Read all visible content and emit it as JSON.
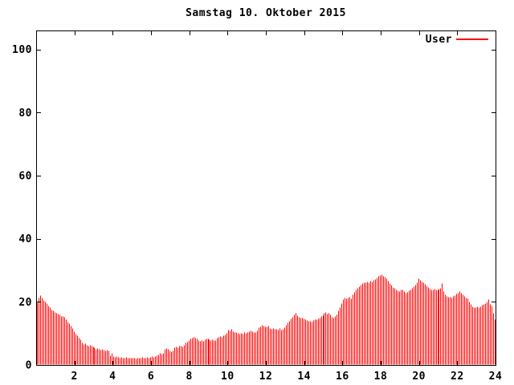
{
  "window": {
    "background": "#ffffff"
  },
  "chart_data": {
    "type": "bar",
    "style": "impulses",
    "title": "Samstag 10. Oktober 2015",
    "legend": {
      "label": "User",
      "position": "top-right-inside"
    },
    "bar_color": "#ff0000",
    "axis_color": "#000000",
    "xlabel": "",
    "ylabel": "",
    "xlim": [
      0,
      24
    ],
    "ylim": [
      0,
      106
    ],
    "x_interval_minutes": 5,
    "x_tick_labels": [
      2,
      4,
      6,
      8,
      10,
      12,
      14,
      16,
      18,
      20,
      22,
      24
    ],
    "y_tick_labels": [
      0,
      20,
      40,
      60,
      80,
      100
    ],
    "grid": false,
    "values": [
      19.8,
      21.3,
      22.0,
      21.4,
      20.7,
      20.2,
      19.5,
      18.9,
      18.3,
      17.6,
      17.2,
      16.8,
      16.6,
      16.2,
      15.9,
      15.6,
      15.4,
      15.3,
      14.6,
      13.8,
      13.1,
      12.4,
      11.6,
      10.7,
      10.0,
      9.3,
      8.7,
      8.1,
      7.2,
      6.6,
      6.8,
      6.4,
      6.2,
      6.3,
      6.0,
      5.8,
      5.5,
      5.2,
      5.3,
      5.0,
      4.9,
      5.1,
      4.8,
      4.7,
      4.9,
      4.6,
      3.0,
      3.9,
      2.8,
      2.6,
      2.7,
      2.5,
      2.4,
      2.6,
      2.3,
      2.4,
      2.5,
      2.3,
      2.2,
      2.4,
      2.2,
      2.3,
      2.1,
      2.2,
      2.4,
      2.3,
      2.5,
      2.3,
      2.4,
      2.6,
      2.4,
      2.5,
      2.7,
      2.6,
      2.8,
      3.0,
      3.4,
      3.7,
      3.6,
      3.9,
      5.0,
      5.3,
      5.2,
      4.6,
      4.3,
      4.5,
      5.5,
      5.8,
      5.6,
      6.0,
      6.1,
      5.9,
      6.3,
      7.0,
      7.4,
      7.9,
      8.5,
      8.7,
      8.9,
      8.6,
      8.4,
      8.0,
      7.7,
      7.9,
      7.6,
      8.1,
      8.3,
      8.5,
      8.2,
      7.9,
      8.1,
      7.8,
      8.0,
      8.6,
      9.0,
      9.2,
      8.9,
      9.4,
      9.6,
      10.2,
      11.3,
      11.0,
      11.4,
      10.6,
      10.3,
      10.5,
      10.1,
      9.9,
      10.2,
      10.0,
      10.3,
      10.1,
      10.5,
      10.8,
      11.0,
      10.6,
      10.3,
      10.5,
      10.9,
      11.9,
      12.3,
      12.7,
      12.4,
      12.1,
      12.3,
      12.4,
      11.8,
      11.5,
      11.6,
      11.4,
      11.5,
      11.3,
      11.6,
      11.2,
      11.4,
      12.0,
      12.8,
      13.4,
      14.1,
      14.7,
      15.3,
      16.0,
      16.5,
      15.8,
      15.2,
      14.9,
      15.1,
      14.7,
      14.5,
      14.2,
      13.9,
      14.1,
      13.8,
      14.3,
      14.6,
      14.4,
      14.8,
      15.1,
      15.4,
      15.8,
      16.4,
      16.7,
      16.2,
      16.5,
      16.0,
      15.3,
      14.9,
      15.4,
      16.1,
      17.2,
      18.4,
      19.6,
      20.8,
      21.4,
      21.0,
      21.3,
      21.6,
      21.2,
      22.4,
      23.1,
      23.8,
      24.5,
      25.0,
      25.4,
      25.9,
      26.3,
      26.1,
      26.5,
      26.2,
      26.7,
      26.4,
      27.0,
      27.3,
      27.7,
      28.1,
      28.4,
      28.6,
      28.2,
      27.9,
      27.4,
      26.8,
      26.0,
      25.3,
      24.7,
      24.3,
      23.9,
      23.6,
      23.4,
      23.8,
      24.0,
      23.4,
      22.8,
      23.1,
      23.6,
      23.9,
      24.4,
      24.9,
      25.5,
      26.2,
      27.4,
      26.9,
      26.5,
      26.1,
      25.6,
      25.1,
      24.6,
      24.2,
      24.0,
      23.9,
      24.1,
      23.8,
      24.0,
      24.2,
      24.5,
      25.9,
      23.5,
      22.3,
      21.8,
      21.5,
      21.7,
      21.4,
      21.8,
      22.1,
      22.6,
      23.0,
      23.3,
      22.9,
      22.4,
      21.9,
      21.4,
      21.0,
      20.2,
      19.3,
      18.6,
      18.2,
      18.3,
      18.5,
      18.3,
      18.6,
      19.0,
      19.4,
      19.7,
      20.1,
      20.8,
      19.4,
      18.9,
      16.5,
      14.5
    ]
  }
}
